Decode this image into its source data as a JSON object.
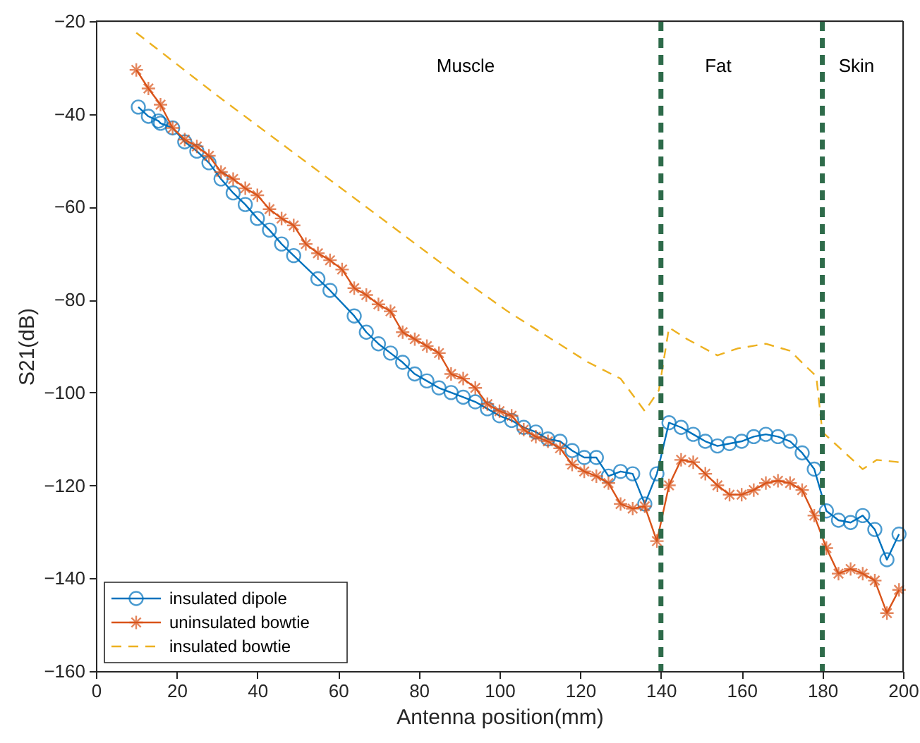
{
  "chart_data": {
    "type": "line",
    "xlabel": "Antenna position(mm)",
    "ylabel": "S21(dB)",
    "xlim": [
      0,
      200
    ],
    "xticks": [
      0,
      20,
      40,
      60,
      80,
      100,
      120,
      140,
      160,
      180,
      200
    ],
    "ylim": [
      -160,
      -20
    ],
    "yticks": [
      -160,
      -140,
      -120,
      -100,
      -80,
      -60,
      -40,
      -20
    ],
    "grid": false,
    "legend": "bottom left",
    "series": [
      {
        "name": "insulated dipole",
        "color": "#0072bd",
        "marker": "circle",
        "line_style": "solid",
        "x": [
          10.5,
          13,
          15.5,
          16,
          19,
          22,
          25,
          28,
          31,
          34,
          37,
          40,
          43,
          46,
          49,
          55,
          58,
          64,
          67,
          70,
          73,
          76,
          79,
          82,
          85,
          88,
          91,
          94,
          97,
          100,
          103,
          106,
          109,
          112,
          115,
          118,
          121,
          124,
          127,
          130,
          133,
          136,
          139,
          142,
          145,
          148,
          151,
          154,
          157,
          160,
          163,
          166,
          169,
          172,
          175,
          178,
          181,
          184,
          187,
          190,
          193,
          196,
          199
        ],
        "values": [
          -38.5,
          -40.5,
          -41.5,
          -42,
          -43,
          -46,
          -48,
          -50.5,
          -54,
          -57,
          -59.5,
          -62.5,
          -65,
          -68,
          -70.5,
          -75.5,
          -78,
          -83.5,
          -87,
          -89.5,
          -91.5,
          -93.5,
          -96,
          -97.5,
          -99,
          -100,
          -101,
          -102,
          -103.5,
          -105,
          -106,
          -107.5,
          -108.5,
          -110,
          -110.5,
          -112.5,
          -114,
          -114,
          -118,
          -117,
          -117.5,
          -124,
          -117.5,
          -106.5,
          -107.5,
          -109,
          -110.5,
          -111.5,
          -111,
          -110.5,
          -109.5,
          -109,
          -109.5,
          -110.5,
          -113,
          -116.5,
          -125.5,
          -127.5,
          -128,
          -126.5,
          -129.5,
          -136,
          -130.5
        ]
      },
      {
        "name": "uninsulated bowtie",
        "color": "#d95319",
        "marker": "cross",
        "line_style": "solid",
        "x": [
          10,
          13,
          16,
          19,
          22,
          25,
          28,
          31,
          34,
          37,
          40,
          43,
          46,
          49,
          52,
          55,
          58,
          61,
          64,
          67,
          70,
          73,
          76,
          79,
          82,
          85,
          88,
          91,
          94,
          97,
          100,
          103,
          106,
          109,
          112,
          115,
          118,
          121,
          124,
          127,
          130,
          133,
          136,
          139,
          142,
          145,
          148,
          151,
          154,
          157,
          160,
          163,
          166,
          169,
          172,
          175,
          178,
          181,
          184,
          187,
          190,
          193,
          196,
          199
        ],
        "values": [
          -30.5,
          -34.5,
          -38,
          -43,
          -45.5,
          -47,
          -49,
          -52.5,
          -54,
          -56,
          -57.5,
          -60.5,
          -62.5,
          -64,
          -68,
          -70,
          -71.5,
          -73.5,
          -77.5,
          -79,
          -81,
          -82.5,
          -87,
          -88.5,
          -90,
          -91.5,
          -96,
          -97,
          -99,
          -102.5,
          -104,
          -105,
          -108,
          -109.5,
          -110.5,
          -112,
          -115.5,
          -117,
          -118,
          -119.5,
          -124,
          -125,
          -124.5,
          -132,
          -120,
          -114.5,
          -115,
          -117.5,
          -120,
          -122,
          -122,
          -121,
          -119.5,
          -119,
          -119.5,
          -121,
          -126.5,
          -133.5,
          -139,
          -138,
          -139,
          -140.5,
          -147.5,
          -142.5
        ]
      },
      {
        "name": "insulated bowtie",
        "color": "#edb120",
        "marker": "none",
        "line_style": "dashed",
        "x": [
          10,
          30,
          50,
          70,
          91.5,
          102,
          122,
          130,
          136,
          139.5,
          142,
          146.5,
          154,
          159,
          166,
          172,
          175.5,
          178.5,
          180,
          185,
          190,
          193.5,
          199
        ],
        "values": [
          -22.5,
          -36,
          -49,
          -62,
          -76,
          -82.5,
          -93.5,
          -97,
          -104,
          -99.5,
          -86,
          -88.5,
          -92,
          -90.5,
          -89.5,
          -91,
          -94,
          -96.5,
          -108.5,
          -112.5,
          -116.5,
          -114.5,
          -115
        ]
      }
    ],
    "ref_lines": [
      {
        "axis": "x",
        "value": 140,
        "color": "#2e6b4a",
        "line_style": "dashed"
      },
      {
        "axis": "x",
        "value": 180,
        "color": "#2e6b4a",
        "line_style": "dashed"
      }
    ],
    "annotations": [
      "Muscle",
      "Fat",
      "Skin"
    ]
  }
}
